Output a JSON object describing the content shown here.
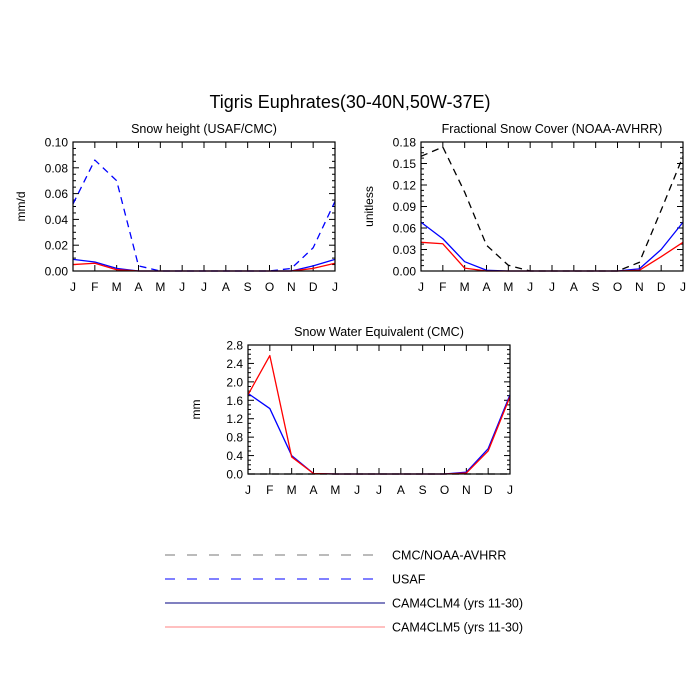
{
  "main_title": "Tigris Euphrates(30-40N,50W-37E)",
  "colors": {
    "black": "#000000",
    "blue": "#0000ff",
    "red": "#ff0000",
    "grey": "#777777",
    "lightred": "#ff8080"
  },
  "chart_data": [
    {
      "type": "line",
      "title": "Snow height (USAF/CMC)",
      "ylabel": "mm/d",
      "categories": [
        "J",
        "F",
        "M",
        "A",
        "M",
        "J",
        "J",
        "A",
        "S",
        "O",
        "N",
        "D",
        "J"
      ],
      "ylim": [
        0,
        0.1
      ],
      "yticks": [
        "0.00",
        "0.02",
        "0.04",
        "0.06",
        "0.08",
        "0.10"
      ],
      "series": [
        {
          "name": "USAF",
          "color": "#0000ff",
          "dash": true,
          "values": [
            0.052,
            0.086,
            0.07,
            0.004,
            0,
            0,
            0,
            0,
            0,
            0,
            0.002,
            0.018,
            0.054
          ]
        },
        {
          "name": "CAM4CLM4 (yrs 11-30)",
          "color": "#0000ff",
          "dash": false,
          "values": [
            0.009,
            0.007,
            0.002,
            0,
            0,
            0,
            0,
            0,
            0,
            0,
            0,
            0.004,
            0.009
          ]
        },
        {
          "name": "CAM4CLM5 (yrs 11-30)",
          "color": "#ff0000",
          "dash": false,
          "values": [
            0.005,
            0.006,
            0.001,
            0,
            0,
            0,
            0,
            0,
            0,
            0,
            0,
            0.002,
            0.006
          ]
        }
      ]
    },
    {
      "type": "line",
      "title": "Fractional Snow Cover (NOAA-AVHRR)",
      "ylabel": "unitless",
      "categories": [
        "J",
        "F",
        "M",
        "A",
        "M",
        "J",
        "J",
        "A",
        "S",
        "O",
        "N",
        "D",
        "J"
      ],
      "ylim": [
        0,
        0.18
      ],
      "yticks": [
        "0.00",
        "0.03",
        "0.06",
        "0.09",
        "0.12",
        "0.15",
        "0.18"
      ],
      "series": [
        {
          "name": "CMC/NOAA-AVHRR",
          "color": "#000000",
          "dash": true,
          "values": [
            0.16,
            0.173,
            0.11,
            0.036,
            0.008,
            0,
            0,
            0,
            0,
            0,
            0.012,
            0.085,
            0.16
          ]
        },
        {
          "name": "CAM4CLM4 (yrs 11-30)",
          "color": "#0000ff",
          "dash": false,
          "values": [
            0.068,
            0.045,
            0.013,
            0.001,
            0,
            0,
            0,
            0,
            0,
            0,
            0.003,
            0.03,
            0.068
          ]
        },
        {
          "name": "CAM4CLM5 (yrs 11-30)",
          "color": "#ff0000",
          "dash": false,
          "values": [
            0.04,
            0.038,
            0.004,
            0,
            0,
            0,
            0,
            0,
            0,
            0,
            0.001,
            0.02,
            0.04
          ]
        }
      ]
    },
    {
      "type": "line",
      "title": "Snow Water Equivalent (CMC)",
      "ylabel": "mm",
      "categories": [
        "J",
        "F",
        "M",
        "A",
        "M",
        "J",
        "J",
        "A",
        "S",
        "O",
        "N",
        "D",
        "J"
      ],
      "ylim": [
        0,
        2.8
      ],
      "yticks": [
        "0.0",
        "0.4",
        "0.8",
        "1.2",
        "1.6",
        "2.0",
        "2.4",
        "2.8"
      ],
      "series": [
        {
          "name": "CMC/NOAA-AVHRR",
          "color": "#000000",
          "dash": true,
          "values": [
            0,
            0,
            0,
            0,
            0,
            0,
            0,
            0,
            0,
            0,
            0,
            0,
            0
          ]
        },
        {
          "name": "CAM4CLM4 (yrs 11-30)",
          "color": "#0000ff",
          "dash": false,
          "values": [
            1.75,
            1.42,
            0.4,
            0.01,
            0,
            0,
            0,
            0,
            0,
            0,
            0.04,
            0.55,
            1.72
          ]
        },
        {
          "name": "CAM4CLM5 (yrs 11-30)",
          "color": "#ff0000",
          "dash": false,
          "values": [
            1.72,
            2.57,
            0.37,
            0.01,
            0,
            0,
            0,
            0,
            0,
            0,
            0.02,
            0.5,
            1.68
          ]
        }
      ]
    }
  ],
  "legend": [
    {
      "label": "CMC/NOAA-AVHRR",
      "color": "#777777",
      "dash": true
    },
    {
      "label": "USAF",
      "color": "#0000ff",
      "dash": true
    },
    {
      "label": "CAM4CLM4 (yrs 11-30)",
      "color": "#000080",
      "dash": false
    },
    {
      "label": "CAM4CLM5 (yrs 11-30)",
      "color": "#ff8080",
      "dash": false
    }
  ]
}
